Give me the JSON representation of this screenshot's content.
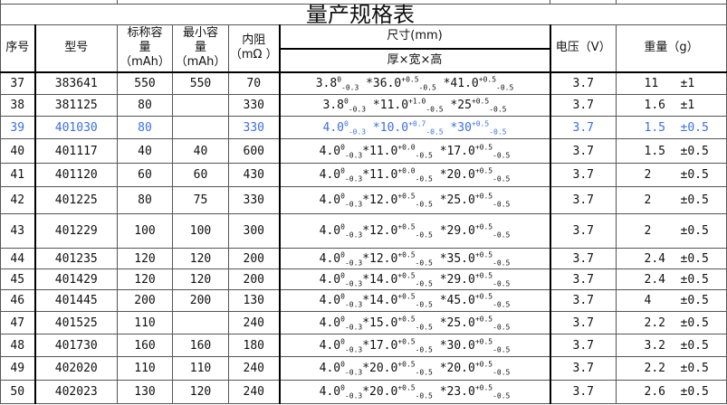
{
  "title": "量产规格表",
  "headers": {
    "seq": "序号",
    "model": "型号",
    "nominal": "标称容量（mAh）",
    "nominal_l1": "标称容",
    "nominal_l2": "量",
    "nominal_l3": "（mAh）",
    "min_l1": "最小容",
    "min_l2": "量",
    "min_l3": "（mAh）",
    "ir_l1": "内阻",
    "ir_l2": "（mΩ ）",
    "dims": "尺寸(mm)",
    "dims_sub": "厚×宽×高",
    "voltage": "电压（V）",
    "weight": "重量（g）"
  },
  "colors": {
    "highlight_row_text": "#3a6fe6"
  },
  "rows": [
    {
      "seq": "37",
      "model": "383641",
      "nominal": "550",
      "min": "550",
      "ir": "70",
      "dims": [
        [
          "3.8",
          "0",
          "-0.3"
        ],
        [
          " *36.0",
          "+0.5",
          "-0.5"
        ],
        [
          " *41.0",
          "+0.5",
          "-0.5"
        ]
      ],
      "voltage": "3.7",
      "weight": "11",
      "tol": "±1"
    },
    {
      "seq": "38",
      "model": "381125",
      "nominal": "80",
      "min": "",
      "ir": "330",
      "dims": [
        [
          "3.8",
          "0",
          "-0.3"
        ],
        [
          " *11.0",
          "+1.0",
          "-0.5"
        ],
        [
          " *25",
          "+0.5",
          "-0.5"
        ]
      ],
      "voltage": "3.7",
      "weight": "1.6",
      "tol": "±1"
    },
    {
      "seq": "39",
      "model": "401030",
      "nominal": "80",
      "min": "",
      "ir": "330",
      "dims": [
        [
          "4.0",
          "0",
          "-0.3"
        ],
        [
          " *10.0",
          "+0.7",
          "-0.5"
        ],
        [
          " *30",
          "+0.5",
          "-0.5"
        ]
      ],
      "voltage": "3.7",
      "weight": "1.5",
      "tol": "±0.5",
      "highlight": true
    },
    {
      "seq": "40",
      "model": "401117",
      "nominal": "40",
      "min": "40",
      "ir": "600",
      "dims": [
        [
          "4.0",
          "0",
          "-0.3"
        ],
        [
          "*11.0",
          "+0.0",
          "-0.5"
        ],
        [
          " *17.0",
          "+0.5",
          "-0.5"
        ]
      ],
      "voltage": "3.7",
      "weight": "1.5",
      "tol": "±0.5"
    },
    {
      "seq": "41",
      "model": "401120",
      "nominal": "60",
      "min": "60",
      "ir": "430",
      "dims": [
        [
          "4.0",
          "0",
          "-0.3"
        ],
        [
          "*11.0",
          "+0.0",
          "-0.5"
        ],
        [
          " *20.0",
          "+0.5",
          "-0.5"
        ]
      ],
      "voltage": "3.7",
      "weight": "2",
      "tol": "±0.5"
    },
    {
      "seq": "42",
      "model": "401225",
      "nominal": "80",
      "min": "75",
      "ir": "330",
      "dims": [
        [
          "4.0",
          "0",
          "-0.3"
        ],
        [
          "*12.0",
          "+0.5",
          "-0.5"
        ],
        [
          " *25.0",
          "+0.5",
          "-0.5"
        ]
      ],
      "voltage": "3.7",
      "weight": "2",
      "tol": "±0.5"
    },
    {
      "seq": "43",
      "model": "401229",
      "nominal": "100",
      "min": "100",
      "ir": "300",
      "dims": [
        [
          "4.0",
          "0",
          "-0.3"
        ],
        [
          "*12.0",
          "+0.5",
          "-0.5"
        ],
        [
          " *29.0",
          "+0.5",
          "-0.5"
        ]
      ],
      "voltage": "3.7",
      "weight": "2",
      "tol": "±0.5"
    },
    {
      "seq": "44",
      "model": "401235",
      "nominal": "120",
      "min": "120",
      "ir": "200",
      "dims": [
        [
          "4.0",
          "0",
          "-0.3"
        ],
        [
          "*12.0",
          "+0.5",
          "-0.5"
        ],
        [
          " *35.0",
          "+0.5",
          "-0.5"
        ]
      ],
      "voltage": "3.7",
      "weight": "2.4",
      "tol": "±0.5"
    },
    {
      "seq": "45",
      "model": "401429",
      "nominal": "120",
      "min": "120",
      "ir": "200",
      "dims": [
        [
          "4.0",
          "0",
          "-0.3"
        ],
        [
          "*14.0",
          "+0.5",
          "-0.5"
        ],
        [
          " *29.0",
          "+0.5",
          "-0.5"
        ]
      ],
      "voltage": "3.7",
      "weight": "2.4",
      "tol": "±0.5"
    },
    {
      "seq": "46",
      "model": "401445",
      "nominal": "200",
      "min": "200",
      "ir": "130",
      "dims": [
        [
          "4.0",
          "0",
          "-0.3"
        ],
        [
          "*14.0",
          "+0.5",
          "-0.5"
        ],
        [
          " *45.0",
          "+0.5",
          "-0.5"
        ]
      ],
      "voltage": "3.7",
      "weight": "4",
      "tol": "±0.5"
    },
    {
      "seq": "47",
      "model": "401525",
      "nominal": "110",
      "min": "",
      "ir": "240",
      "dims": [
        [
          "4.0",
          "0",
          "-0.3"
        ],
        [
          "*15.0",
          "+0.5",
          "-0.5"
        ],
        [
          " *25.0",
          "+0.5",
          "-0.5"
        ]
      ],
      "voltage": "3.7",
      "weight": "2.2",
      "tol": "±0.5"
    },
    {
      "seq": "48",
      "model": "401730",
      "nominal": "160",
      "min": "160",
      "ir": "180",
      "dims": [
        [
          "4.0",
          "0",
          "-0.3"
        ],
        [
          "*17.0",
          "+0.5",
          "-0.5"
        ],
        [
          " *30.0",
          "+0.5",
          "-0.5"
        ]
      ],
      "voltage": "3.7",
      "weight": "3.2",
      "tol": "±0.5"
    },
    {
      "seq": "49",
      "model": "402020",
      "nominal": "110",
      "min": "110",
      "ir": "240",
      "dims": [
        [
          "4.0",
          "0",
          "-0.3"
        ],
        [
          "*20.0",
          "+0.5",
          "-0.5"
        ],
        [
          " *20.0",
          "+0.5",
          "-0.5"
        ]
      ],
      "voltage": "3.7",
      "weight": "2.2",
      "tol": "±0.5"
    },
    {
      "seq": "50",
      "model": "402023",
      "nominal": "130",
      "min": "120",
      "ir": "240",
      "dims": [
        [
          "4.0",
          "0",
          "-0.3"
        ],
        [
          "*20.0",
          "+0.5",
          "-0.5"
        ],
        [
          " *23.0",
          "+0.5",
          "-0.5"
        ]
      ],
      "voltage": "3.7",
      "weight": "2.6",
      "tol": "±0.5"
    }
  ]
}
